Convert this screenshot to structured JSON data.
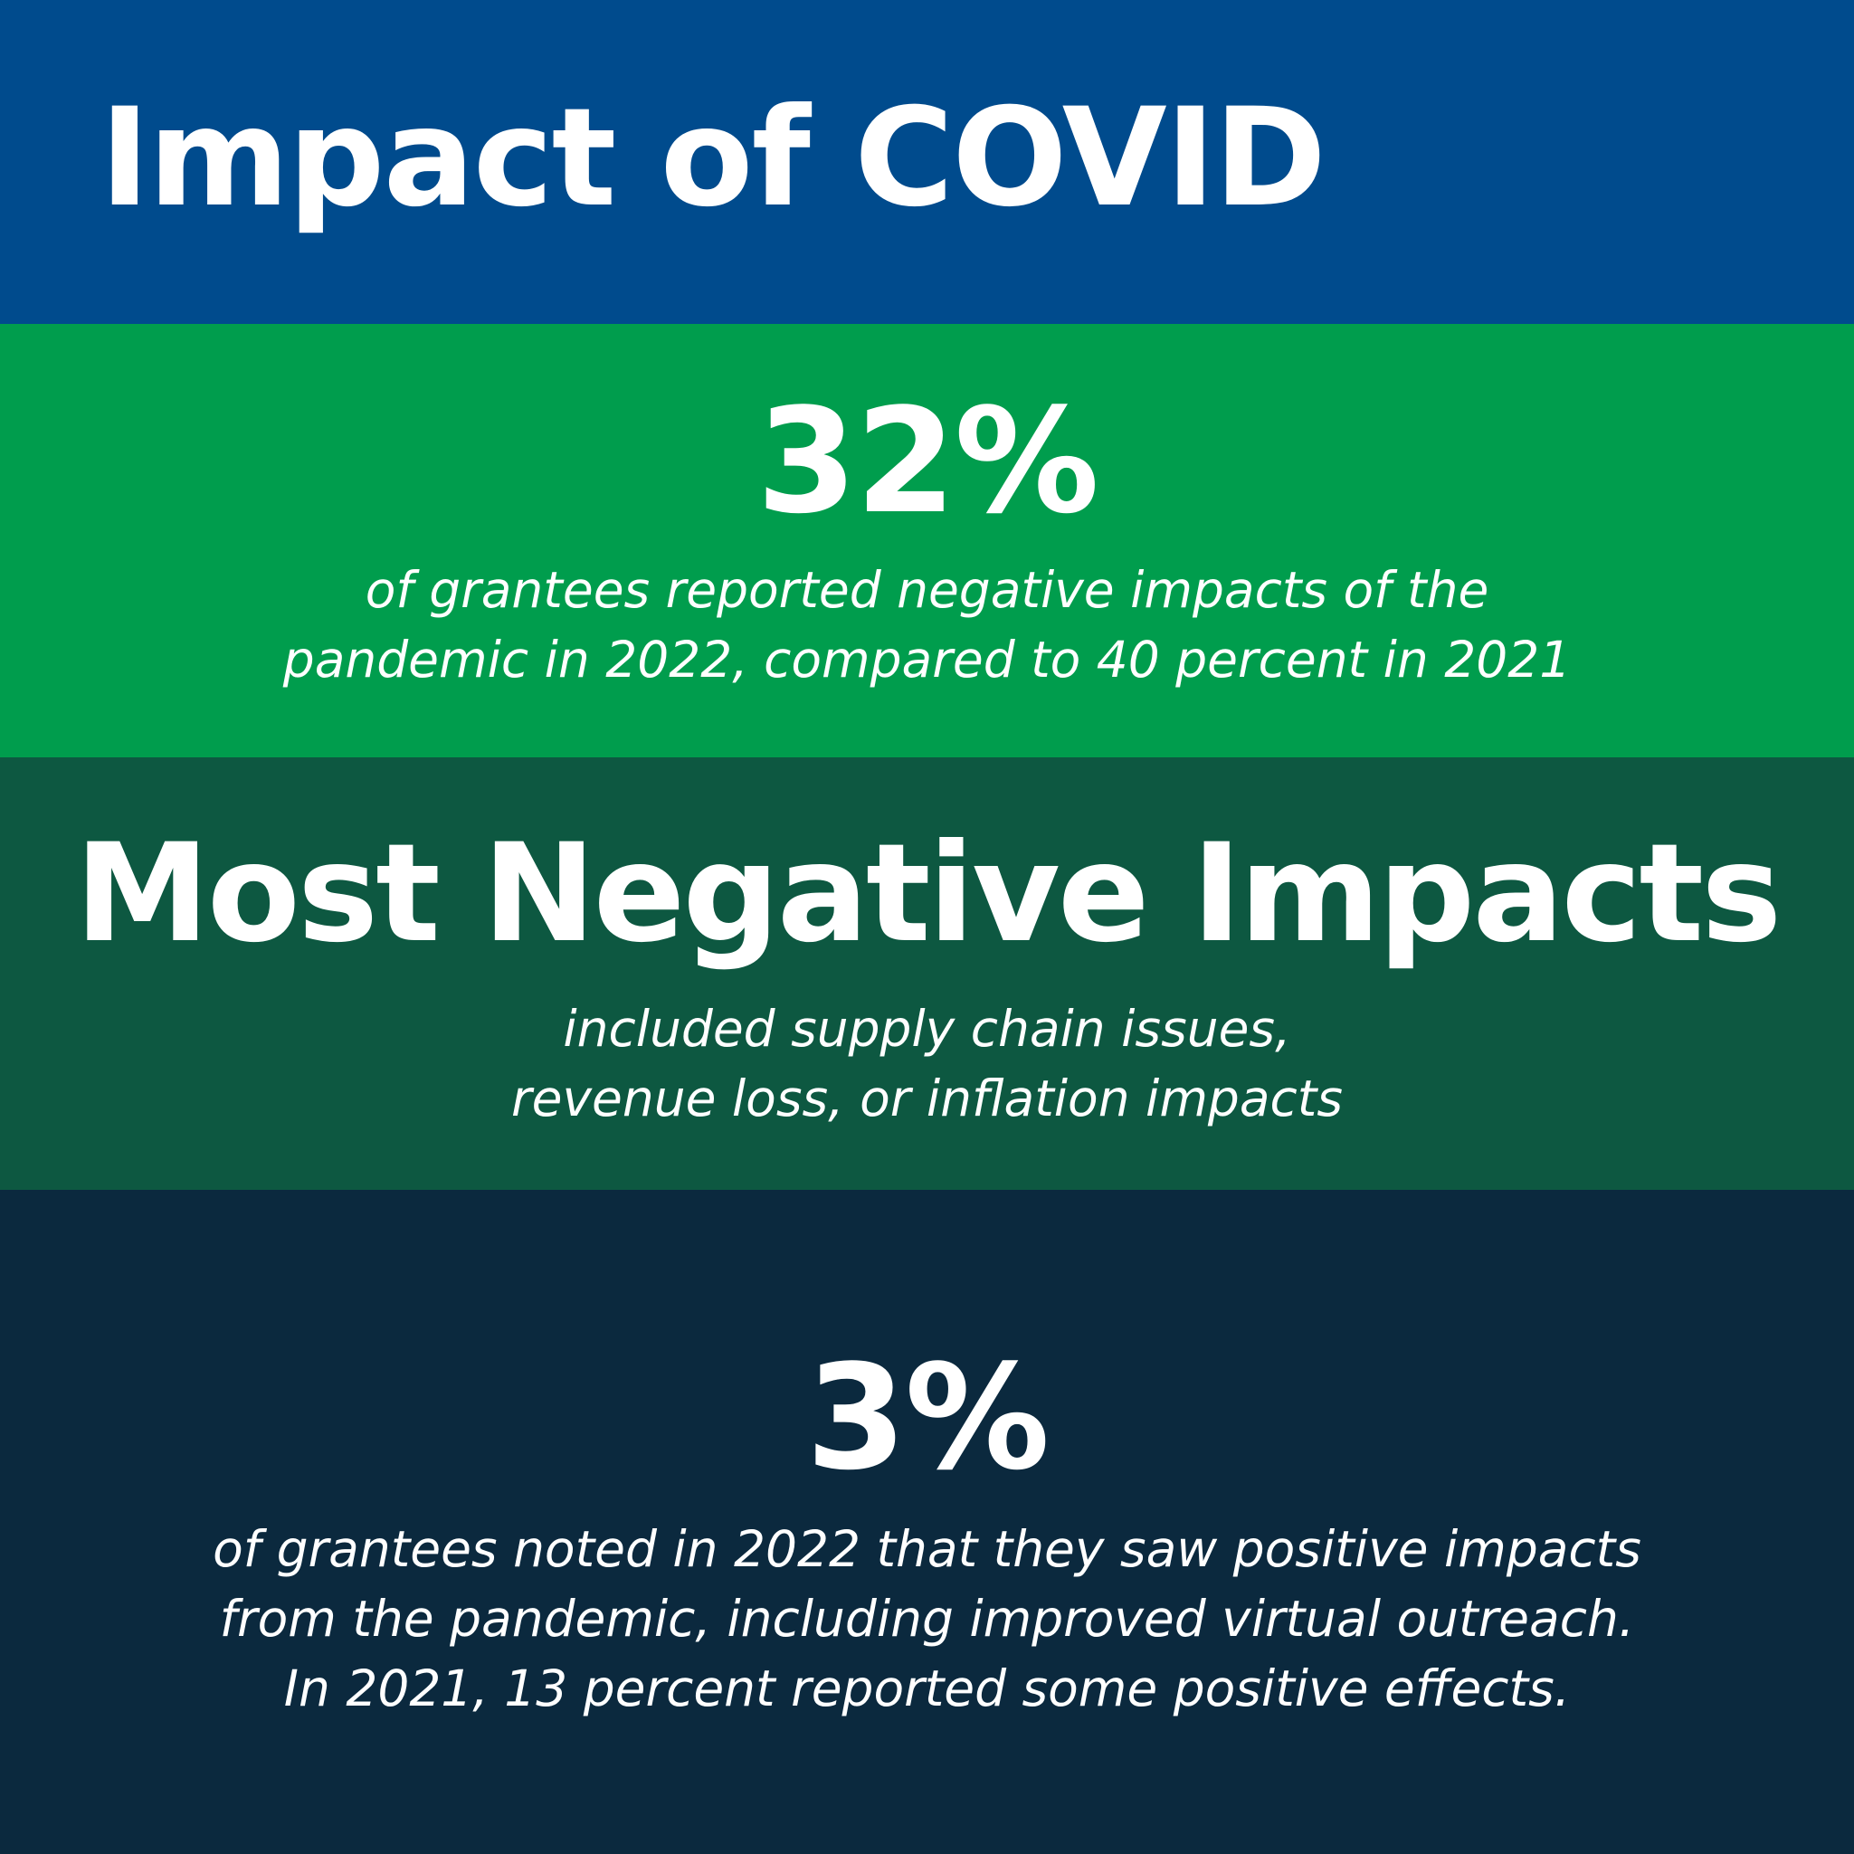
{
  "header": {
    "title": "Impact of COVID"
  },
  "stat_negative": {
    "value": "32%",
    "caption_lines": [
      "of grantees reported negative impacts of the",
      "pandemic in 2022, compared to 40 percent in 2021"
    ]
  },
  "most_negative": {
    "headline": "Most Negative Impacts",
    "caption_lines": [
      "included supply chain issues,",
      "revenue loss, or inflation impacts"
    ]
  },
  "stat_positive": {
    "value": "3%",
    "caption_lines": [
      "of grantees noted in 2022 that they saw positive impacts",
      "from the pandemic, including improved virtual outreach.",
      "In 2021, 13 percent reported some positive effects."
    ]
  },
  "colors": {
    "title_band": "#004b8d",
    "stat_band": "#009d4d",
    "negative_band": "#0d5841",
    "positive_band": "#0b293e",
    "text": "#ffffff"
  }
}
